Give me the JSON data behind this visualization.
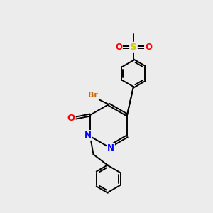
{
  "background_color": "#ececec",
  "bond_color": "#000000",
  "atom_colors": {
    "N": "#0000ff",
    "O": "#ff0000",
    "S": "#cccc00",
    "Br": "#cc6600",
    "C": "#000000"
  },
  "lw": 1.4,
  "fs": 8.5
}
